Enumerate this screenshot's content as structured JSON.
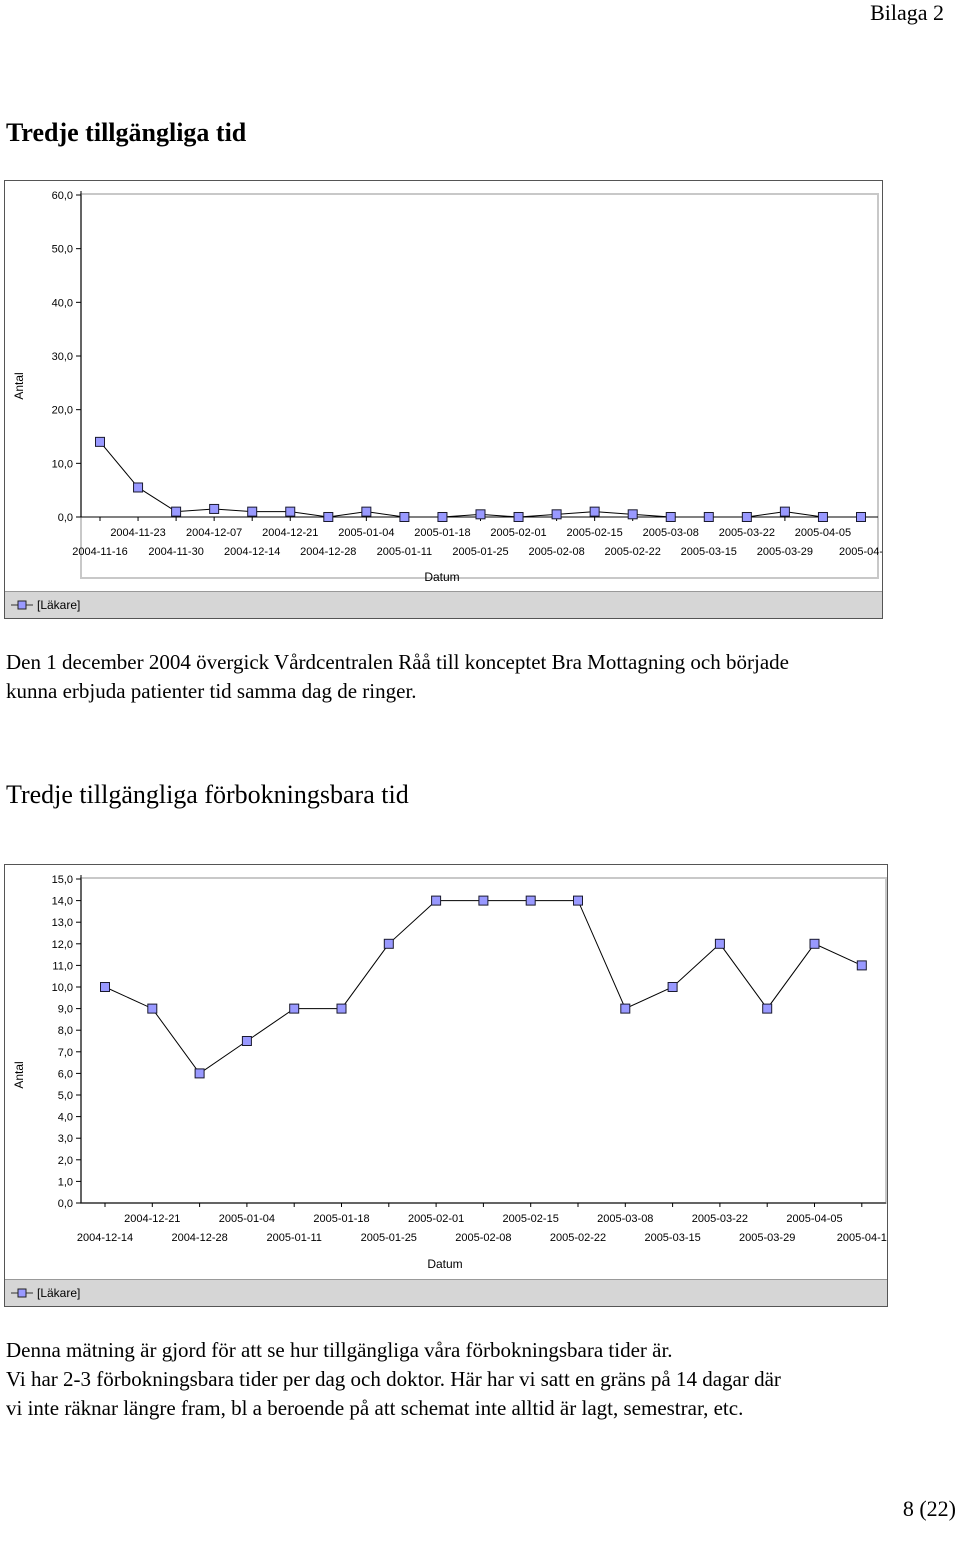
{
  "page": {
    "header": "Bilaga 2",
    "footer": "8 (22)"
  },
  "section1": {
    "heading": "Tredje tillgängliga tid",
    "paragraph_lines": [
      "Den 1 december 2004 övergick Vårdcentralen Råå till konceptet Bra Mottagning och började",
      "kunna erbjuda patienter tid samma dag de ringer."
    ]
  },
  "section2": {
    "heading": "Tredje tillgängliga förbokningsbara tid",
    "paragraph_lines": [
      "Denna mätning är gjord för att se hur tillgängliga våra förbokningsbara tider är.",
      "Vi har 2-3 förbokningsbara tider per dag och doktor. Här har vi satt en gräns på 14 dagar där",
      "vi inte räknar längre fram, bl a beroende på att schemat inte alltid är lagt, semestrar, etc."
    ]
  },
  "chart_data": [
    {
      "type": "line",
      "ylabel": "Antal",
      "xlabel": "Datum",
      "ylim": [
        0,
        60
      ],
      "y_ticks": [
        "0,0",
        "10,0",
        "20,0",
        "30,0",
        "40,0",
        "50,0",
        "60,0"
      ],
      "x": [
        "2004-11-16",
        "2004-11-23",
        "2004-11-30",
        "2004-12-07",
        "2004-12-14",
        "2004-12-21",
        "2004-12-28",
        "2005-01-04",
        "2005-01-11",
        "2005-01-18",
        "2005-01-25",
        "2005-02-01",
        "2005-02-08",
        "2005-02-15",
        "2005-02-22",
        "2005-03-08",
        "2005-03-15",
        "2005-03-22",
        "2005-03-29",
        "2005-04-05",
        "2005-04-"
      ],
      "series": [
        {
          "name": "[Läkare]",
          "values": [
            14,
            5.5,
            1,
            1.5,
            1,
            1,
            0,
            1,
            0,
            0,
            0.5,
            0,
            0.5,
            1,
            0.5,
            0,
            0,
            0,
            1,
            0,
            0
          ]
        }
      ],
      "grid": false,
      "legend": "bottom",
      "color": "#9999ff"
    },
    {
      "type": "line",
      "ylabel": "Antal",
      "xlabel": "Datum",
      "ylim": [
        0,
        15
      ],
      "y_ticks": [
        "0,0",
        "1,0",
        "2,0",
        "3,0",
        "4,0",
        "5,0",
        "6,0",
        "7,0",
        "8,0",
        "9,0",
        "10,0",
        "11,0",
        "12,0",
        "13,0",
        "14,0",
        "15,0"
      ],
      "x": [
        "2004-12-14",
        "2004-12-21",
        "2004-12-28",
        "2005-01-04",
        "2005-01-11",
        "2005-01-18",
        "2005-01-25",
        "2005-02-01",
        "2005-02-08",
        "2005-02-15",
        "2005-02-22",
        "2005-03-08",
        "2005-03-15",
        "2005-03-22",
        "2005-03-29",
        "2005-04-05",
        "2005-04-1"
      ],
      "series": [
        {
          "name": "[Läkare]",
          "values": [
            10,
            9,
            6,
            7.5,
            9,
            9,
            12,
            14,
            14,
            14,
            14,
            9,
            10,
            12,
            9,
            12,
            11
          ]
        }
      ],
      "grid": false,
      "legend": "bottom",
      "color": "#9999ff"
    }
  ]
}
